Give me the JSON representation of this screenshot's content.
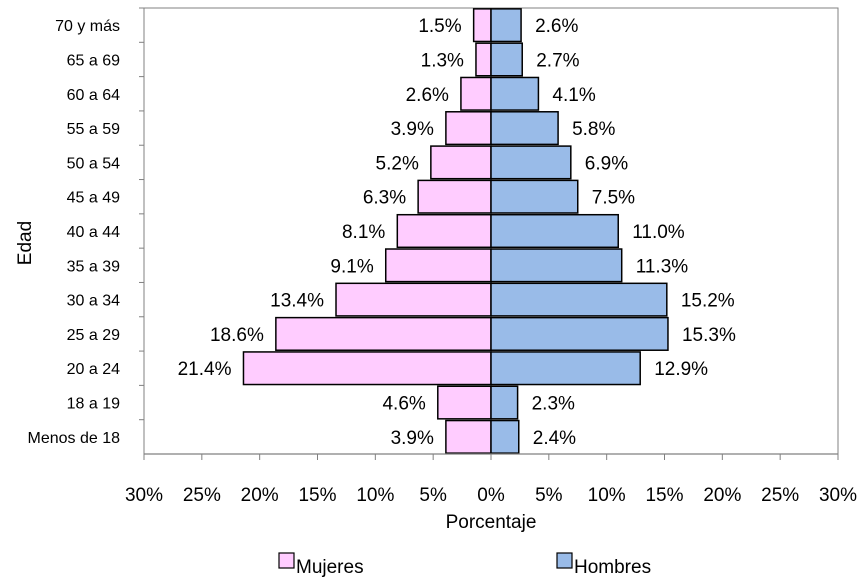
{
  "chart_data": {
    "type": "bar",
    "orientation": "horizontal",
    "layout": "population-pyramid",
    "categories": [
      "70 y más",
      "65 a 69",
      "60 a 64",
      "55 a 59",
      "50 a 54",
      "45 a 49",
      "40 a 44",
      "35 a 39",
      "30 a 34",
      "25 a 29",
      "20 a 24",
      "18 a 19",
      "Menos de 18"
    ],
    "series": [
      {
        "name": "Mujeres",
        "side": "left",
        "color": "#ffccff",
        "values": [
          1.5,
          1.3,
          2.6,
          3.9,
          5.2,
          6.3,
          8.1,
          9.1,
          13.4,
          18.6,
          21.4,
          4.6,
          3.9
        ],
        "labels": [
          "1.5%",
          "1.3%",
          "2.6%",
          "3.9%",
          "5.2%",
          "6.3%",
          "8.1%",
          "9.1%",
          "13.4%",
          "18.6%",
          "21.4%",
          "4.6%",
          "3.9%"
        ]
      },
      {
        "name": "Hombres",
        "side": "right",
        "color": "#99bbe8",
        "values": [
          2.6,
          2.7,
          4.1,
          5.8,
          6.9,
          7.5,
          11.0,
          11.3,
          15.2,
          15.3,
          12.9,
          2.3,
          2.4
        ],
        "labels": [
          "2.6%",
          "2.7%",
          "4.1%",
          "5.8%",
          "6.9%",
          "7.5%",
          "11.0%",
          "11.3%",
          "15.2%",
          "15.3%",
          "12.9%",
          "2.3%",
          "2.4%"
        ]
      }
    ],
    "xlabel": "Porcentaje",
    "ylabel": "Edad",
    "xlim": [
      -30,
      30
    ],
    "xticks": [
      -30,
      -25,
      -20,
      -15,
      -10,
      -5,
      0,
      5,
      10,
      15,
      20,
      25,
      30
    ],
    "xtick_labels": [
      "30%",
      "25%",
      "20%",
      "15%",
      "10%",
      "5%",
      "0%",
      "5%",
      "10%",
      "15%",
      "20%",
      "25%",
      "30%"
    ],
    "grid": false,
    "legend": {
      "position": "bottom",
      "entries": [
        "Mujeres",
        "Hombres"
      ]
    }
  }
}
